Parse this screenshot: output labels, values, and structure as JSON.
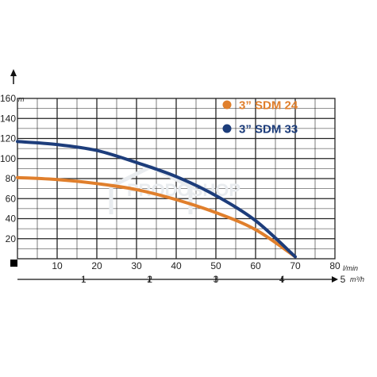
{
  "chart_data": {
    "type": "line",
    "y_unit": "m",
    "x_unit": "l/min",
    "x2_unit": "m³/h",
    "xlim": [
      0,
      80
    ],
    "ylim": [
      0,
      160
    ],
    "x_ticks": [
      "10",
      "20",
      "30",
      "40",
      "50",
      "60",
      "70",
      "80"
    ],
    "y_ticks": [
      "20",
      "40",
      "60",
      "80",
      "100",
      "120",
      "140",
      "160"
    ],
    "x2_ticks": [
      "1",
      "2",
      "3",
      "4",
      "5"
    ],
    "series": [
      {
        "name": "3” SDM 24",
        "color": "#e07f2c",
        "x": [
          0,
          10,
          20,
          30,
          40,
          50,
          60,
          70
        ],
        "y": [
          81,
          79,
          75,
          69,
          59,
          46,
          29,
          2
        ]
      },
      {
        "name": "3” SDM 33",
        "color": "#1d3d7b",
        "x": [
          0,
          10,
          20,
          30,
          40,
          50,
          60,
          70
        ],
        "y": [
          117,
          114,
          108,
          96,
          82,
          63,
          38,
          2
        ]
      }
    ],
    "grid": true,
    "legend_position": "top-right"
  },
  "watermark": "PRODOSHOP",
  "colors": {
    "grid": "#222222",
    "axis": "#111111"
  }
}
